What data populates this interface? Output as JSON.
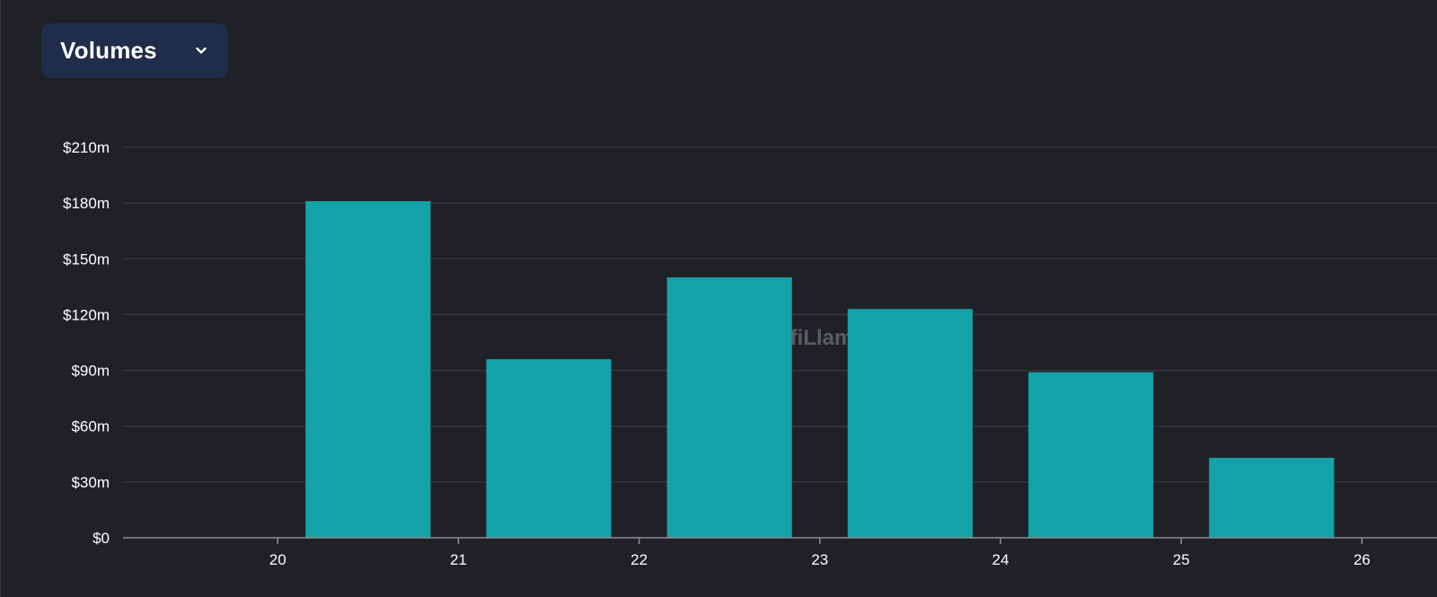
{
  "selector": {
    "label": "Volumes",
    "icon": "chevron-down-icon"
  },
  "watermark": "DefiLlama",
  "colors": {
    "background": "#202127",
    "bar": "#12a2a8",
    "grid": "#34363d",
    "selector_bg": "#1f2d4a"
  },
  "chart_data": {
    "type": "bar",
    "title": "",
    "xlabel": "",
    "ylabel": "",
    "x_ticks": [
      "20",
      "21",
      "22",
      "23",
      "24",
      "25",
      "26"
    ],
    "categories": [
      "20",
      "21",
      "22",
      "23",
      "24",
      "25"
    ],
    "values": [
      181000000,
      96000000,
      140000000,
      123000000,
      89000000,
      43000000
    ],
    "y_ticks": [
      0,
      30000000,
      60000000,
      90000000,
      120000000,
      150000000,
      180000000,
      210000000
    ],
    "y_tick_labels": [
      "$0",
      "$30m",
      "$60m",
      "$90m",
      "$120m",
      "$150m",
      "$180m",
      "$210m"
    ],
    "ylim": [
      0,
      210000000
    ],
    "x_range": [
      19,
      26
    ],
    "grid": true,
    "legend": "none"
  }
}
